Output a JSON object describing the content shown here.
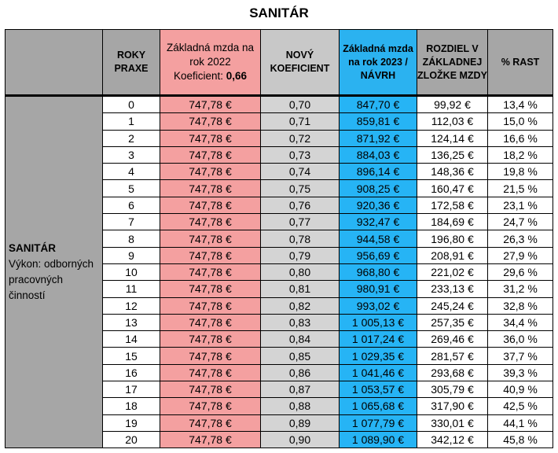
{
  "title": "SANITÁR",
  "headers": {
    "roky": "ROKY PRAXE",
    "zakladna_2022_line1": "Základná mzda na rok 2022",
    "koef_label": "Koeficient:",
    "koef_value": "0,66",
    "novy": "NOVÝ KOEFICIENT",
    "zakladna_2023": "Základná mzda na rok 2023 / NÁVRH",
    "rozdiel": "ROZDIEL V ZÁKLADNEJ ZLOŽKE MZDY",
    "rast": "% RAST"
  },
  "side": {
    "bold": "SANITÁR",
    "text": "Výkon: odborných pracovných činností"
  },
  "rows": [
    {
      "roky": "0",
      "mzda2022": "747,78 €",
      "koef": "0,70",
      "mzda2023": "847,70 €",
      "rozdiel": "99,92 €",
      "rast": "13,4 %"
    },
    {
      "roky": "1",
      "mzda2022": "747,78 €",
      "koef": "0,71",
      "mzda2023": "859,81 €",
      "rozdiel": "112,03 €",
      "rast": "15,0 %"
    },
    {
      "roky": "2",
      "mzda2022": "747,78 €",
      "koef": "0,72",
      "mzda2023": "871,92 €",
      "rozdiel": "124,14 €",
      "rast": "16,6 %"
    },
    {
      "roky": "3",
      "mzda2022": "747,78 €",
      "koef": "0,73",
      "mzda2023": "884,03 €",
      "rozdiel": "136,25 €",
      "rast": "18,2 %"
    },
    {
      "roky": "4",
      "mzda2022": "747,78 €",
      "koef": "0,74",
      "mzda2023": "896,14 €",
      "rozdiel": "148,36 €",
      "rast": "19,8 %"
    },
    {
      "roky": "5",
      "mzda2022": "747,78 €",
      "koef": "0,75",
      "mzda2023": "908,25 €",
      "rozdiel": "160,47 €",
      "rast": "21,5 %"
    },
    {
      "roky": "6",
      "mzda2022": "747,78 €",
      "koef": "0,76",
      "mzda2023": "920,36 €",
      "rozdiel": "172,58 €",
      "rast": "23,1 %"
    },
    {
      "roky": "7",
      "mzda2022": "747,78 €",
      "koef": "0,77",
      "mzda2023": "932,47 €",
      "rozdiel": "184,69 €",
      "rast": "24,7 %"
    },
    {
      "roky": "8",
      "mzda2022": "747,78 €",
      "koef": "0,78",
      "mzda2023": "944,58 €",
      "rozdiel": "196,80 €",
      "rast": "26,3 %"
    },
    {
      "roky": "9",
      "mzda2022": "747,78 €",
      "koef": "0,79",
      "mzda2023": "956,69 €",
      "rozdiel": "208,91 €",
      "rast": "27,9 %"
    },
    {
      "roky": "10",
      "mzda2022": "747,78 €",
      "koef": "0,80",
      "mzda2023": "968,80 €",
      "rozdiel": "221,02 €",
      "rast": "29,6 %"
    },
    {
      "roky": "11",
      "mzda2022": "747,78 €",
      "koef": "0,81",
      "mzda2023": "980,91 €",
      "rozdiel": "233,13 €",
      "rast": "31,2 %"
    },
    {
      "roky": "12",
      "mzda2022": "747,78 €",
      "koef": "0,82",
      "mzda2023": "993,02 €",
      "rozdiel": "245,24 €",
      "rast": "32,8 %"
    },
    {
      "roky": "13",
      "mzda2022": "747,78 €",
      "koef": "0,83",
      "mzda2023": "1 005,13 €",
      "rozdiel": "257,35 €",
      "rast": "34,4 %"
    },
    {
      "roky": "14",
      "mzda2022": "747,78 €",
      "koef": "0,84",
      "mzda2023": "1 017,24 €",
      "rozdiel": "269,46 €",
      "rast": "36,0 %"
    },
    {
      "roky": "15",
      "mzda2022": "747,78 €",
      "koef": "0,85",
      "mzda2023": "1 029,35 €",
      "rozdiel": "281,57 €",
      "rast": "37,7 %"
    },
    {
      "roky": "16",
      "mzda2022": "747,78 €",
      "koef": "0,86",
      "mzda2023": "1 041,46 €",
      "rozdiel": "293,68 €",
      "rast": "39,3 %"
    },
    {
      "roky": "17",
      "mzda2022": "747,78 €",
      "koef": "0,87",
      "mzda2023": "1 053,57 €",
      "rozdiel": "305,79 €",
      "rast": "40,9 %"
    },
    {
      "roky": "18",
      "mzda2022": "747,78 €",
      "koef": "0,88",
      "mzda2023": "1 065,68 €",
      "rozdiel": "317,90 €",
      "rast": "42,5 %"
    },
    {
      "roky": "19",
      "mzda2022": "747,78 €",
      "koef": "0,89",
      "mzda2023": "1 077,79 €",
      "rozdiel": "330,01 €",
      "rast": "44,1 %"
    },
    {
      "roky": "20",
      "mzda2022": "747,78 €",
      "koef": "0,90",
      "mzda2023": "1 089,90 €",
      "rozdiel": "342,12 €",
      "rast": "45,8 %"
    }
  ]
}
